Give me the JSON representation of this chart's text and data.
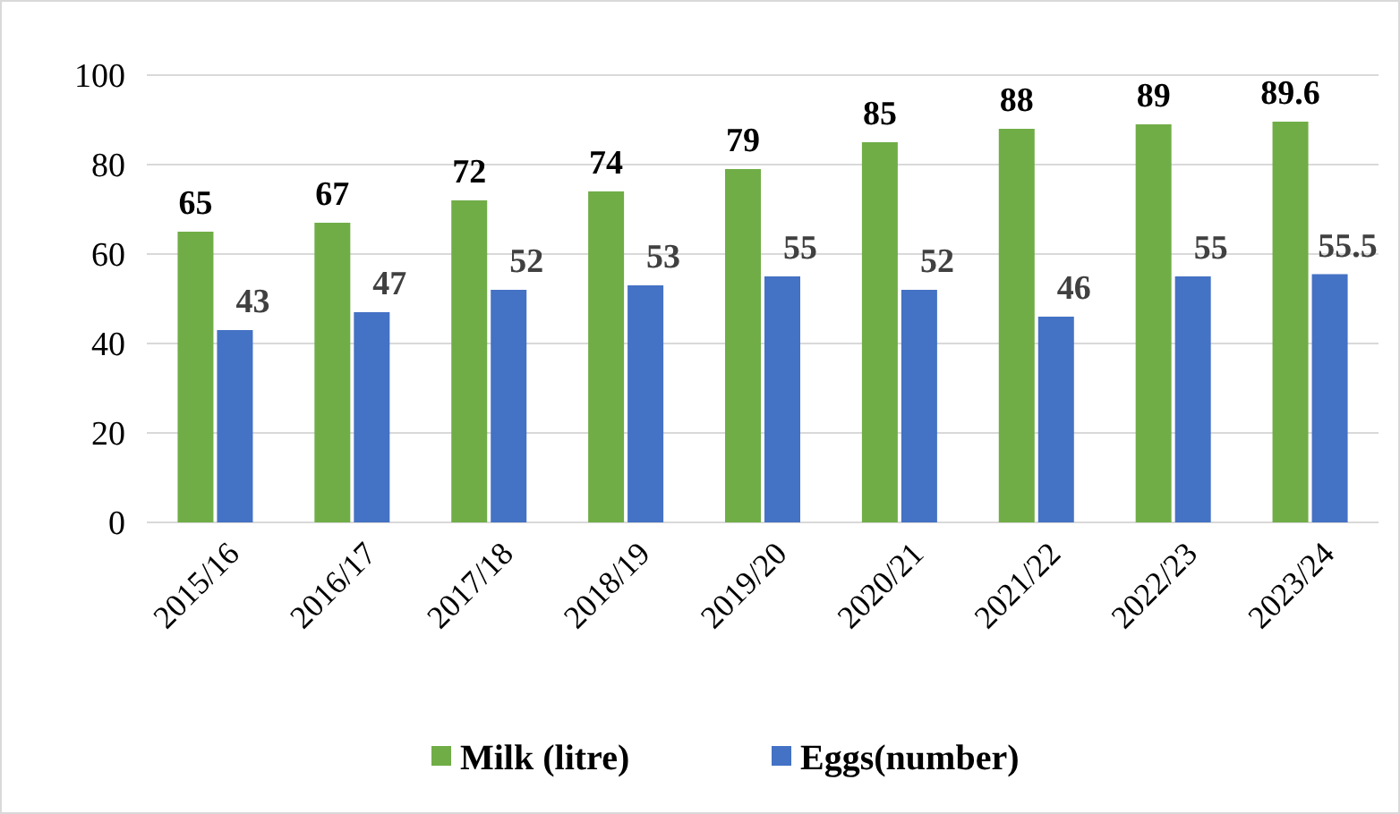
{
  "chart_data": {
    "type": "bar",
    "categories": [
      "2015/16",
      "2016/17",
      "2017/18",
      "2018/19",
      "2019/20",
      "2020/21",
      "2021/22",
      "2022/23",
      "2023/24"
    ],
    "series": [
      {
        "name": "Milk (litre)",
        "color": "#70ad47",
        "values": [
          65,
          67,
          72,
          74,
          79,
          85,
          88,
          89,
          89.6
        ]
      },
      {
        "name": "Eggs(number)",
        "color": "#4472c4",
        "values": [
          43,
          47,
          52,
          53,
          55,
          52,
          46,
          55,
          55.5
        ]
      }
    ],
    "ylim": [
      0,
      100
    ],
    "yticks": [
      0,
      20,
      40,
      60,
      80,
      100
    ],
    "grid": "y",
    "legend": "bottom",
    "data_labels": true
  }
}
